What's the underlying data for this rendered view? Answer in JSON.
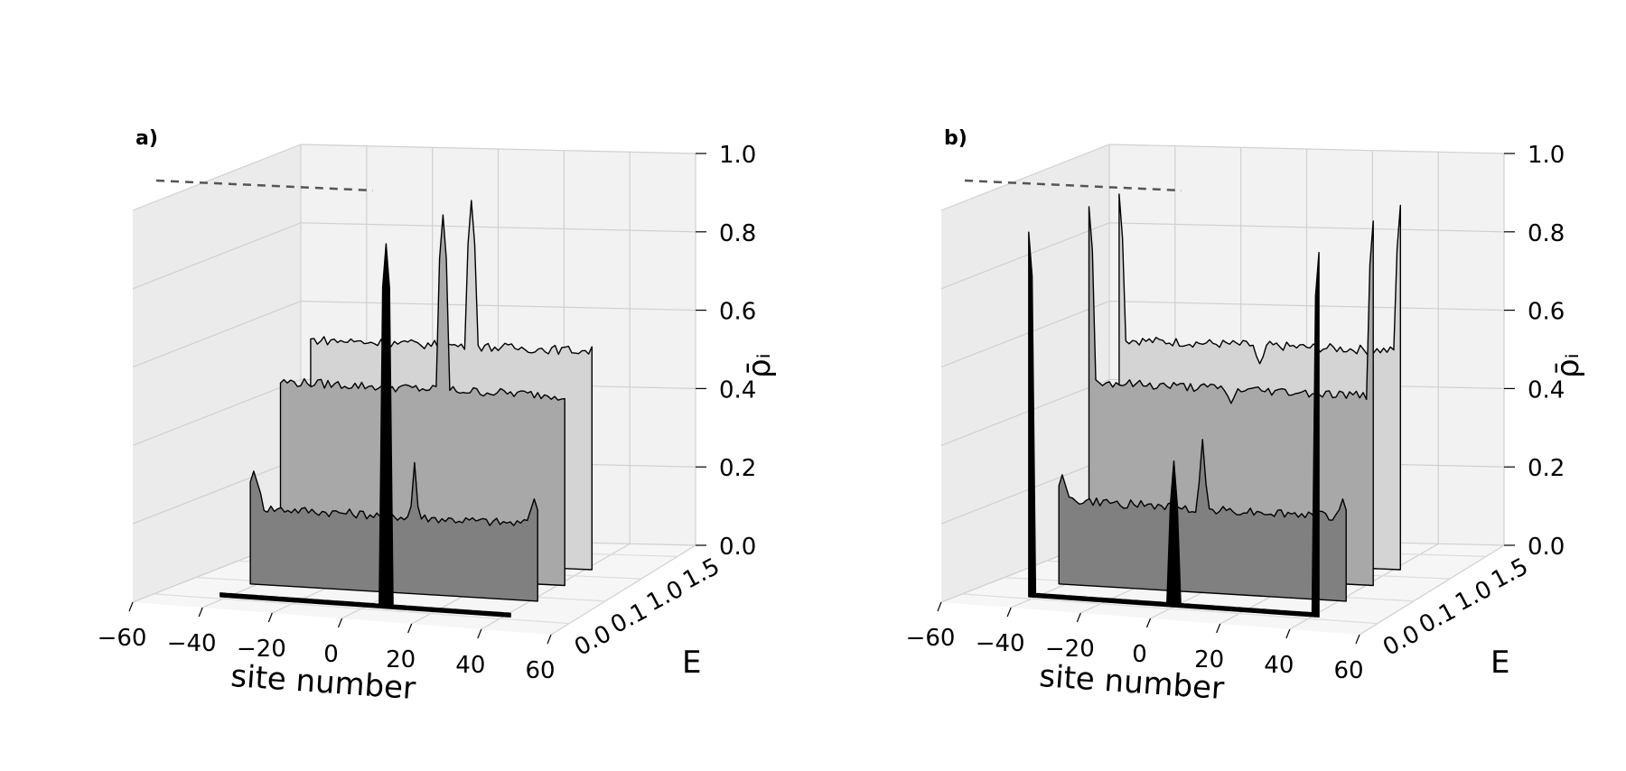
{
  "chart_data": [
    {
      "type": "area",
      "title": "",
      "panel_label": "a)",
      "xlabel": "site number",
      "ylabel": "E",
      "zlabel": "ρ̄ᵢ",
      "x_ticks": [
        "−60",
        "−40",
        "−20",
        "0",
        "20",
        "40",
        "60"
      ],
      "y_ticks": [
        "0.0",
        "0.1",
        "1.0",
        "1.5"
      ],
      "z_ticks": [
        "0.0",
        "0.2",
        "0.4",
        "0.6",
        "0.8",
        "1.0"
      ],
      "xlim": [
        -60,
        60
      ],
      "zlim": [
        0,
        1
      ],
      "grid": true,
      "series": [
        {
          "E": "0.0",
          "baseline": 0.01,
          "color": "#000000",
          "sites": [
            -42,
            42
          ],
          "peaks": [
            {
              "x": 6,
              "value": 1.0
            }
          ],
          "edge_bumps": []
        },
        {
          "E": "0.1",
          "baseline": 0.21,
          "color": "#808080",
          "sites": [
            -42,
            42
          ],
          "peaks": [
            {
              "x": 6,
              "value": 0.36
            }
          ],
          "edge_bumps": [
            {
              "x": -41,
              "value": 0.31
            },
            {
              "x": 41,
              "value": 0.28
            }
          ]
        },
        {
          "E": "1.0",
          "baseline": 0.52,
          "color": "#a8a8a8",
          "sites": [
            -42,
            42
          ],
          "peaks": [
            {
              "x": 6,
              "value": 1.0
            }
          ],
          "edge_bumps": []
        },
        {
          "E": "1.5",
          "baseline": 0.6,
          "color": "#d4d4d4",
          "sites": [
            -42,
            42
          ],
          "peaks": [
            {
              "x": 6,
              "value": 1.0
            }
          ],
          "edge_bumps": []
        }
      ]
    },
    {
      "type": "area",
      "title": "",
      "panel_label": "b)",
      "xlabel": "site number",
      "ylabel": "E",
      "zlabel": "ρ̄ᵢ",
      "x_ticks": [
        "−60",
        "−40",
        "−20",
        "0",
        "20",
        "40",
        "60"
      ],
      "y_ticks": [
        "0.0",
        "0.1",
        "1.0",
        "1.5"
      ],
      "z_ticks": [
        "0.0",
        "0.2",
        "0.4",
        "0.6",
        "0.8",
        "1.0"
      ],
      "xlim": [
        -60,
        60
      ],
      "zlim": [
        0,
        1
      ],
      "grid": true,
      "series": [
        {
          "E": "0.0",
          "baseline": 0.01,
          "color": "#000000",
          "sites": [
            -42,
            42
          ],
          "peaks": [
            {
              "x": -42,
              "value": 1.0
            },
            {
              "x": 0,
              "value": 0.4
            },
            {
              "x": 42,
              "value": 1.0
            }
          ],
          "edge_bumps": []
        },
        {
          "E": "0.1",
          "baseline": 0.23,
          "color": "#808080",
          "sites": [
            -42,
            42
          ],
          "peaks": [
            {
              "x": 0,
              "value": 0.42
            }
          ],
          "edge_bumps": [
            {
              "x": -41,
              "value": 0.3
            },
            {
              "x": 41,
              "value": 0.28
            }
          ]
        },
        {
          "E": "1.0",
          "baseline": 0.52,
          "color": "#a8a8a8",
          "sites": [
            -42,
            42
          ],
          "peaks": [
            {
              "x": -42,
              "value": 1.0
            },
            {
              "x": 42,
              "value": 1.0
            }
          ],
          "dips": [
            {
              "x": 0,
              "value": 0.48
            }
          ],
          "edge_bumps": []
        },
        {
          "E": "1.5",
          "baseline": 0.6,
          "color": "#d4d4d4",
          "sites": [
            -42,
            42
          ],
          "peaks": [
            {
              "x": -42,
              "value": 1.0
            },
            {
              "x": 42,
              "value": 1.0
            }
          ],
          "dips": [
            {
              "x": 0,
              "value": 0.55
            }
          ],
          "edge_bumps": []
        }
      ]
    }
  ]
}
